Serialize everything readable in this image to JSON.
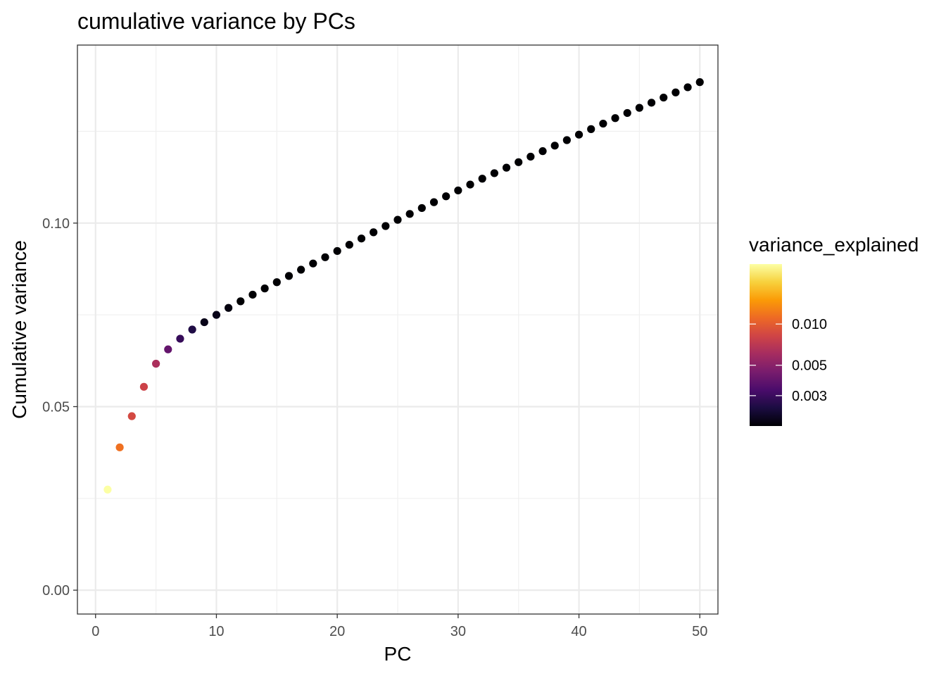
{
  "chart_data": {
    "type": "scatter",
    "title": "cumulative variance by PCs",
    "xlabel": "PC",
    "ylabel": "Cumulative variance",
    "xlim": [
      -1.5,
      51.5
    ],
    "ylim": [
      -0.0065,
      0.1485
    ],
    "x_ticks": [
      0,
      10,
      20,
      30,
      40,
      50
    ],
    "x_tick_labels": [
      "0",
      "10",
      "20",
      "30",
      "40",
      "50"
    ],
    "y_ticks": [
      0.0,
      0.05,
      0.1
    ],
    "y_tick_labels": [
      "0.00",
      "0.05",
      "0.10"
    ],
    "grid": true,
    "legend": {
      "title": "variance_explained",
      "position": "right",
      "scale": "log",
      "range": [
        0.0018,
        0.0274
      ],
      "ticks": [
        0.01,
        0.005,
        0.003
      ],
      "tick_labels": [
        "0.010",
        "0.005",
        "0.003"
      ],
      "colormap": [
        "#000004",
        "#1b0c41",
        "#4a0c6b",
        "#781c6d",
        "#a52c60",
        "#cf4446",
        "#ed6925",
        "#fb9b06",
        "#f7d13d",
        "#fcffa4"
      ]
    },
    "x": [
      1,
      2,
      3,
      4,
      5,
      6,
      7,
      8,
      9,
      10,
      11,
      12,
      13,
      14,
      15,
      16,
      17,
      18,
      19,
      20,
      21,
      22,
      23,
      24,
      25,
      26,
      27,
      28,
      29,
      30,
      31,
      32,
      33,
      34,
      35,
      36,
      37,
      38,
      39,
      40,
      41,
      42,
      43,
      44,
      45,
      46,
      47,
      48,
      49,
      50
    ],
    "y": [
      0.0274,
      0.0389,
      0.0474,
      0.0554,
      0.0617,
      0.0656,
      0.0685,
      0.071,
      0.073,
      0.075,
      0.0769,
      0.0787,
      0.0805,
      0.0822,
      0.0839,
      0.0856,
      0.0873,
      0.089,
      0.0907,
      0.0924,
      0.0941,
      0.0958,
      0.0975,
      0.0992,
      0.1009,
      0.1025,
      0.1041,
      0.1057,
      0.1073,
      0.1089,
      0.1105,
      0.1121,
      0.1136,
      0.1151,
      0.1166,
      0.1181,
      0.1196,
      0.1211,
      0.1226,
      0.1241,
      0.1256,
      0.1271,
      0.1286,
      0.13,
      0.1314,
      0.1328,
      0.1342,
      0.1356,
      0.137,
      0.1384
    ],
    "color_values": [
      0.0274,
      0.0115,
      0.0085,
      0.008,
      0.0063,
      0.0039,
      0.0029,
      0.0025,
      0.002,
      0.002,
      0.0019,
      0.0018,
      0.0018,
      0.0017,
      0.0017,
      0.0017,
      0.0017,
      0.0017,
      0.0017,
      0.0017,
      0.0017,
      0.0017,
      0.0017,
      0.0017,
      0.0017,
      0.0016,
      0.0016,
      0.0016,
      0.0016,
      0.0016,
      0.0016,
      0.0016,
      0.0015,
      0.0015,
      0.0015,
      0.0015,
      0.0015,
      0.0015,
      0.0015,
      0.0015,
      0.0015,
      0.0015,
      0.0015,
      0.0014,
      0.0014,
      0.0014,
      0.0014,
      0.0014,
      0.0014,
      0.0014
    ]
  }
}
